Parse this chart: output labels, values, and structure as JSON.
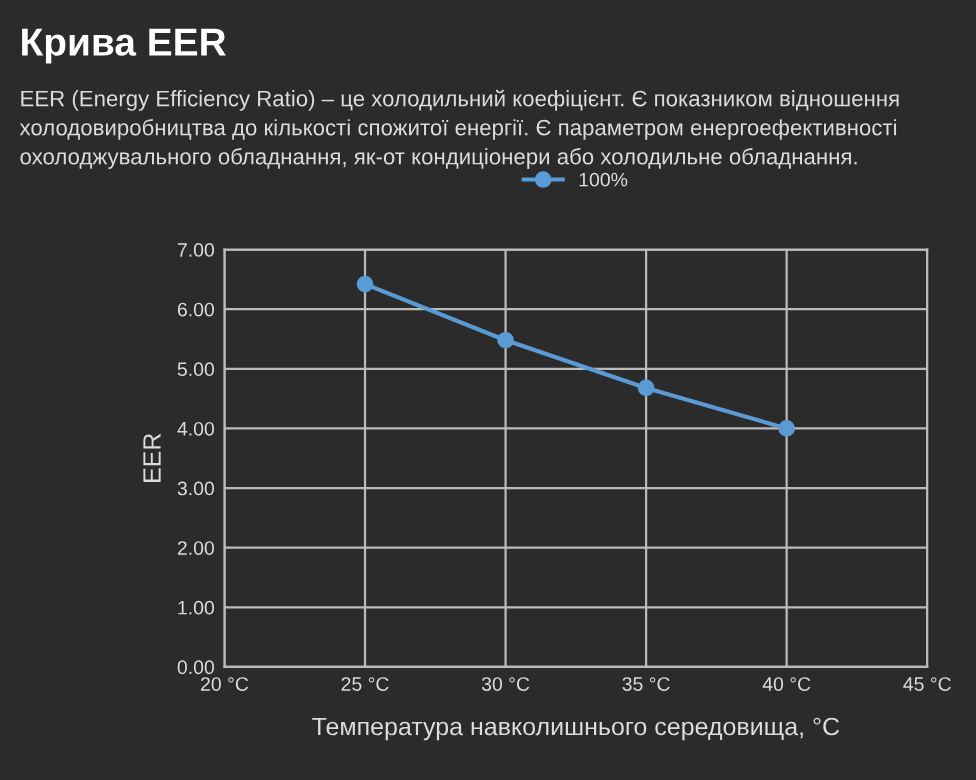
{
  "chart_data": {
    "type": "line",
    "title": "Крива EER",
    "subtitle": "EER (Energy Efficiency Ratio) – це холодильний коефіцієнт. Є показником відношення холодовиробництва до кількості спожитої енергії. Є параметром енергоефективності охолоджувального обладнання, як-от кондиціонери або холодильне обладнання.",
    "xlabel": "Температура навколишнього середовища, °C",
    "ylabel": "EER",
    "series": [
      {
        "name": "100%",
        "color": "#5b9bd5",
        "x": [
          25,
          30,
          35,
          40
        ],
        "values": [
          6.42,
          5.48,
          4.68,
          4.0
        ]
      }
    ],
    "xlim": [
      20,
      45
    ],
    "xticks": [
      {
        "value": 20,
        "label": "20 °C"
      },
      {
        "value": 25,
        "label": "25 °C"
      },
      {
        "value": 30,
        "label": "30 °C"
      },
      {
        "value": 35,
        "label": "35 °C"
      },
      {
        "value": 40,
        "label": "40 °C"
      },
      {
        "value": 45,
        "label": "45 °C"
      }
    ],
    "ylim": [
      0,
      7
    ],
    "yticks": [
      {
        "value": 0,
        "label": "0.00"
      },
      {
        "value": 1,
        "label": "1.00"
      },
      {
        "value": 2,
        "label": "2.00"
      },
      {
        "value": 3,
        "label": "3.00"
      },
      {
        "value": 4,
        "label": "4.00"
      },
      {
        "value": 5,
        "label": "5.00"
      },
      {
        "value": 6,
        "label": "6.00"
      },
      {
        "value": 7,
        "label": "7.00"
      }
    ],
    "grid": true,
    "legend": "top",
    "marker": "circle",
    "line_style": "solid"
  }
}
